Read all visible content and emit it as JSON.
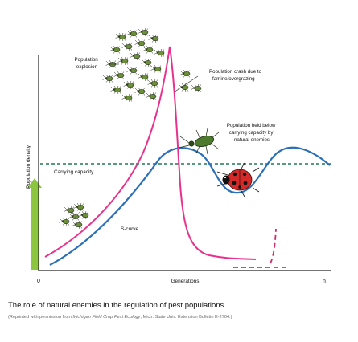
{
  "diagram": {
    "y_axis_label": "Population density",
    "x_axis_label": "Generations",
    "x_start": "0",
    "x_end": "n",
    "labels": {
      "population_explosion": [
        "Population",
        "explosion"
      ],
      "population_crash": [
        "Population crash due to",
        "famine/overgrazing"
      ],
      "held_below": [
        "Population held below",
        "carrying capacity by",
        "natural enemies"
      ],
      "carrying_capacity": "Carrying capacity",
      "s_curve": "S-curve"
    },
    "colors": {
      "explosion_curve": "#e8318c",
      "s_curve": "#2a6fb8",
      "carrying_capacity_line": "#1f7a55",
      "resurgence_dash": "#d42a6b",
      "growth_arrow": "#8cc63f",
      "axis": "#222222"
    },
    "icons": [
      "aphid-cluster-icon",
      "ground-beetle-icon",
      "ladybug-icon"
    ]
  },
  "caption": {
    "title": "The role of natural enemies in the regulation of pest populations.",
    "credit_prefix": "(Reprinted with permission from ",
    "credit_source": "Michigan Field Crop Pest Ecology",
    "credit_suffix": ", Mich. State Univ. Extension Bulletin E-2704.)"
  }
}
